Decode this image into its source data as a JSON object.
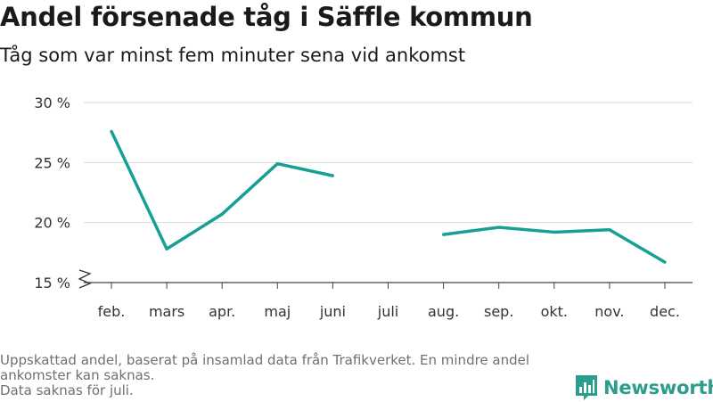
{
  "header": {
    "title": "Andel försenade tåg i Säffle kommun",
    "subtitle": "Tåg som var minst fem minuter sena vid ankomst"
  },
  "footnote": {
    "line1": "Uppskattad andel, baserat på insamlad data från Trafikverket. En mindre andel ankomster kan saknas.",
    "line2": "Data saknas för juli."
  },
  "brand": {
    "name": "Newsworthy",
    "icon": "newsworthy-logo-icon",
    "color": "#2a9d8f"
  },
  "chart_data": {
    "type": "line",
    "title": "Andel försenade tåg i Säffle kommun",
    "subtitle": "Tåg som var minst fem minuter sena vid ankomst",
    "categories": [
      "feb.",
      "mars",
      "apr.",
      "maj",
      "juni",
      "juli",
      "aug.",
      "sep.",
      "okt.",
      "nov.",
      "dec."
    ],
    "series": [
      {
        "values": [
          27.6,
          17.8,
          20.7,
          24.9,
          23.9,
          null,
          19.0,
          19.6,
          19.2,
          19.4,
          16.7
        ],
        "color": "#16a095"
      }
    ],
    "yticks": [
      15,
      20,
      25,
      30
    ],
    "ytick_labels": [
      "15 %",
      "20 %",
      "25 %",
      "30 %"
    ],
    "ylim": [
      15,
      30
    ],
    "y_axis_break": true,
    "grid": true,
    "xlabel": "",
    "ylabel": ""
  }
}
